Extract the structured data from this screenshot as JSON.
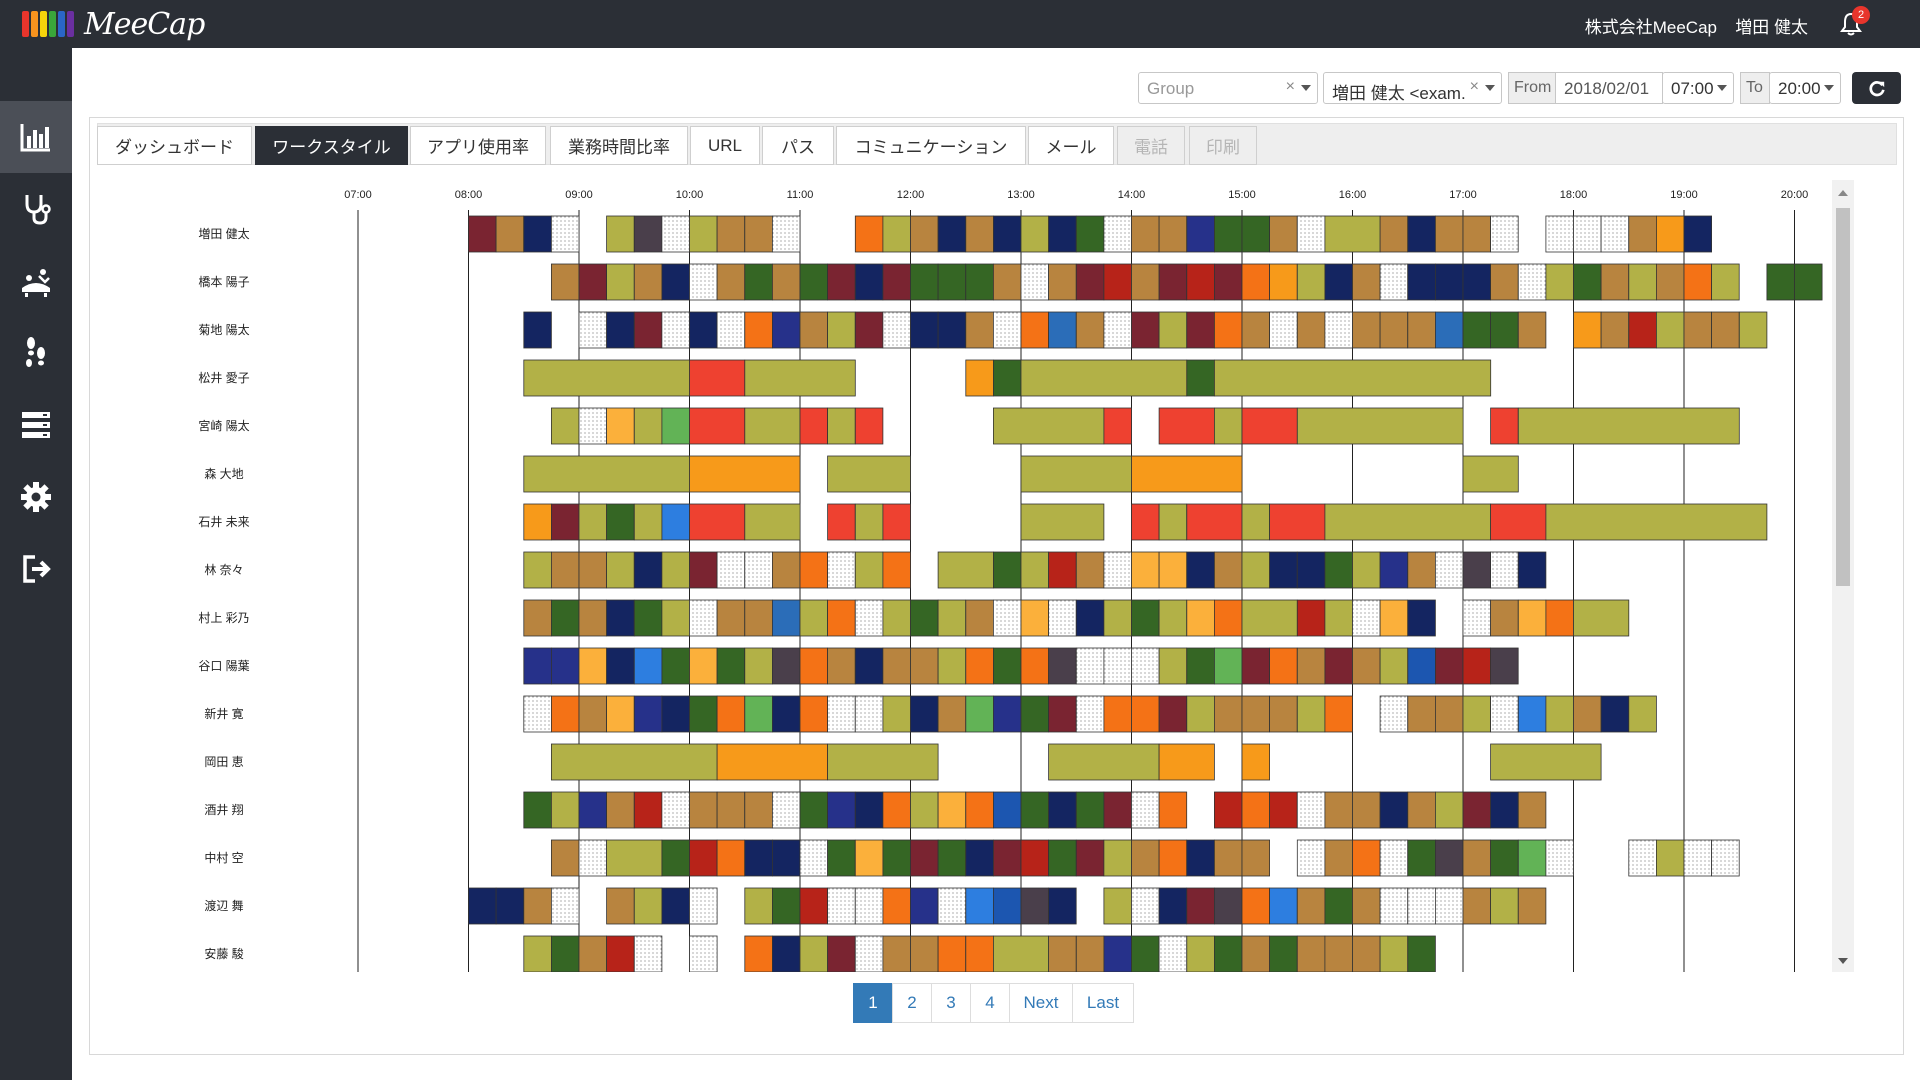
{
  "app": {
    "logo_text": "MeeCap",
    "company": "株式会社MeeCap",
    "user_name": "増田 健太",
    "notification_count": "2",
    "logo_colors": [
      "#e8352c",
      "#f7931e",
      "#f6d40b",
      "#3aa63a",
      "#2a66c7",
      "#6a2fa0"
    ]
  },
  "sidebar": {
    "items": [
      {
        "icon": "bar-chart-icon",
        "active": true
      },
      {
        "icon": "stethoscope-icon",
        "active": false
      },
      {
        "icon": "meeting-icon",
        "active": false
      },
      {
        "icon": "footprints-icon",
        "active": false
      },
      {
        "icon": "server-icon",
        "active": false
      },
      {
        "icon": "gear-icon",
        "active": false
      },
      {
        "icon": "sign-out-icon",
        "active": false
      }
    ]
  },
  "filters": {
    "group_placeholder": "Group",
    "user_value": "増田 健太 <exam.",
    "from_label": "From",
    "from_date": "2018/02/01",
    "from_time": "07:00",
    "to_label": "To",
    "to_time": "20:00"
  },
  "tabs": [
    {
      "label": "ダッシュボード",
      "state": "normal"
    },
    {
      "label": "ワークスタイル",
      "state": "active"
    },
    {
      "label": "アプリ使用率",
      "state": "normal"
    },
    {
      "label": "業務時間比率",
      "state": "normal"
    },
    {
      "label": "URL",
      "state": "normal"
    },
    {
      "label": "パス",
      "state": "normal"
    },
    {
      "label": "コミュニケーション",
      "state": "normal"
    },
    {
      "label": "メール",
      "state": "normal"
    },
    {
      "label": "電話",
      "state": "disabled"
    },
    {
      "label": "印刷",
      "state": "disabled"
    }
  ],
  "pagination": {
    "pages": [
      "1",
      "2",
      "3",
      "4"
    ],
    "current": "1",
    "next": "Next",
    "last": "Last"
  },
  "palette": {
    "D": "#7a2431",
    "B": "#b8843f",
    "N": "#142561",
    "W": "#ffffff",
    "K": "#b2b147",
    "Y": "#4a3f4b",
    "O": "#f47216",
    "G": "#356624",
    "I": "#26318a",
    "R": "#ee4130",
    "F": "#f79a1a",
    "A": "#fbb03b",
    "L": "#62b356",
    "U": "#2b6db8",
    "C": "#b72319",
    "E": "#2d7ee0",
    "M": "#1c56b0",
    "S": "#b8843f"
  },
  "chart_data": {
    "type": "gantt",
    "x_ticks": [
      "07:00",
      "08:00",
      "09:00",
      "10:00",
      "11:00",
      "12:00",
      "13:00",
      "14:00",
      "15:00",
      "16:00",
      "17:00",
      "18:00",
      "19:00",
      "20:00"
    ],
    "x_range": [
      "07:00",
      "20:00"
    ],
    "segment_minutes": 15,
    "rows": [
      {
        "name": "増田 健太",
        "segments": "....DBNW.KYWKBBW..OKBNBNKNGWBBIGGBWKKBNBBW.WWWBFN"
      },
      {
        "name": "橋本 陽子",
        "segments": ".......BDKBNWBGBGDNDGGGBWBDCBDCDOFKNBWNNNBWKGBKBOK.GG"
      },
      {
        "name": "菊地 陽太",
        "segments": "......N.WNDWNWOIBKDWNNBWOUBWDKDOBWBWBBBUGGB.FBCKBBK"
      },
      {
        "name": "松井 愛子",
        "segments": "......KKKKKKRRKKKK....FGKKKKKKGKKKKKKKKKK"
      },
      {
        "name": "宮崎 陽太",
        "segments": ".......KWAKLRRKKRKR....KKKKR.RRKRRKKKKKK.RKKKKKKKK"
      },
      {
        "name": "森 大地",
        "segments": "......KKKKKKFFFF.KKK....KKKKFFFF........KK"
      },
      {
        "name": "石井 未来",
        "segments": "......FDKGKERRKK.RKR....KKK.RKRRKRRKKKKKKRRKKKKKKKK"
      },
      {
        "name": "林 奈々",
        "segments": "......KBBKNKDWWBOWKO KKGKCBWAANBKNNGKIBWYWN"
      },
      {
        "name": "村上 彩乃",
        "segments": "......BGBNGKWBBUKOWKGKBWAWNKGKAOKKCKWAN.WBAOKK"
      },
      {
        "name": "谷口 陽葉",
        "segments": "......IIANEGAGKYOBNBBKOGOYWWWKGLDOBDBKMDCY"
      },
      {
        "name": "新井 寛",
        "segments": "......WOBAINGOLNOWWKNBLIGDWOODKBBBKO.WBBKWEKBNK"
      },
      {
        "name": "岡田 恵",
        "segments": ".......KKKKKKFFFFKKKK....KKKKFF.F........KKKK"
      },
      {
        "name": "酒井 翔",
        "segments": "......GKIBCWBBBWGINOKAOMGNGDWO.COCWBBNBKDNB"
      },
      {
        "name": "中村 空",
        "segments": ".......BWKKGCONNWGAGDGNDCGDKBONBB.WBOWGYBGLW..WKWW"
      },
      {
        "name": "渡辺 舞",
        "segments": "....NNBW.BKNW.KGCWWOIWEMYN.KWNDYOEBGBWWWBKB"
      },
      {
        "name": "安藤 駿",
        "segments": "......KGBCW.W.ONKDWBBOOKKBBIGWKGBGBBBKG"
      }
    ]
  }
}
